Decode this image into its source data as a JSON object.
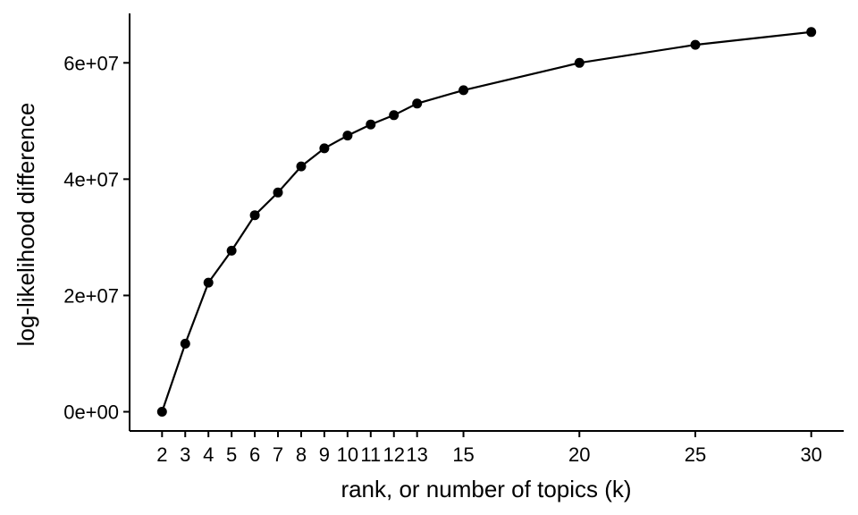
{
  "chart_data": {
    "type": "line",
    "title": "",
    "xlabel": "rank, or number of topics (k)",
    "ylabel": "log-likelihood difference",
    "x": [
      2,
      3,
      4,
      5,
      6,
      7,
      8,
      9,
      10,
      11,
      12,
      13,
      15,
      20,
      25,
      30
    ],
    "y": [
      0,
      11700000,
      22200000,
      27700000,
      33800000,
      37700000,
      42200000,
      45300000,
      47500000,
      49400000,
      51000000,
      53000000,
      55300000,
      60000000,
      63100000,
      65300000
    ],
    "x_ticks": [
      2,
      3,
      4,
      5,
      6,
      7,
      8,
      9,
      10,
      11,
      12,
      13,
      15,
      20,
      25,
      30
    ],
    "x_tick_labels": [
      "2",
      "3",
      "4",
      "5",
      "6",
      "7",
      "8",
      "9",
      "10",
      "11",
      "12",
      "13",
      "15",
      "20",
      "25",
      "30"
    ],
    "y_ticks": [
      0,
      20000000,
      40000000,
      60000000
    ],
    "y_tick_labels": [
      "0e+00",
      "2e+07",
      "4e+07",
      "6e+07"
    ],
    "xlim": [
      0.6,
      31.4
    ],
    "ylim": [
      -3300000,
      68500000
    ],
    "grid": false,
    "legend": "none",
    "colors": {
      "line": "#000000",
      "points": "#000000"
    }
  }
}
